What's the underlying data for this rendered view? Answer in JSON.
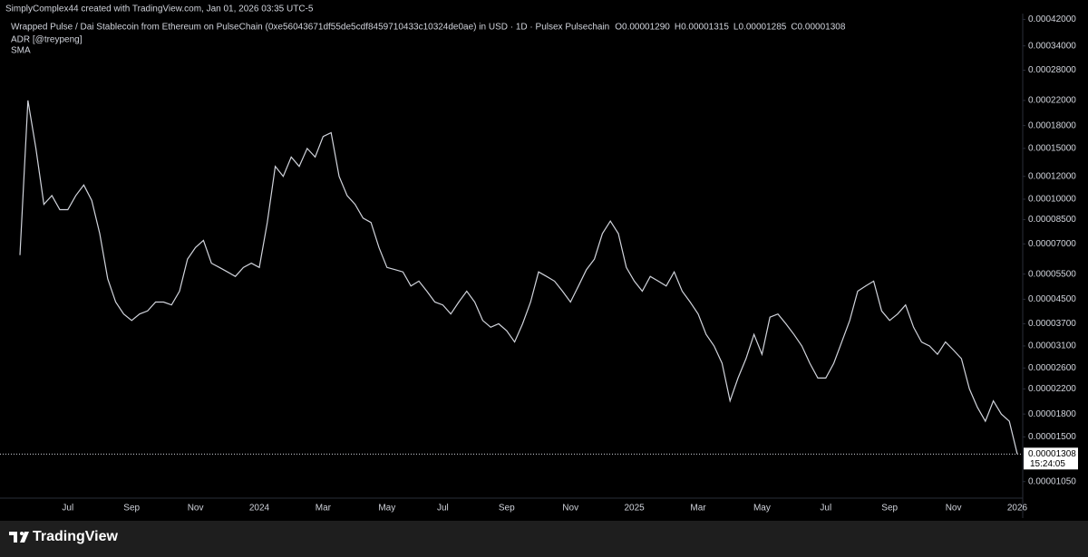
{
  "header": {
    "credit": "SimplyComplex44 created with TradingView.com, Jan 01, 2026 03:35 UTC-5"
  },
  "footer": {
    "brand": "TradingView"
  },
  "chart_data": {
    "type": "line",
    "title": "Wrapped Pulse / Dai Stablecoin from Ethereum on PulseChain (0xe56043671df55de5cdf8459710433c10324de0ae) in USD · 1D · Pulsex Pulsechain",
    "ohlc": [
      "O0.00001290",
      "H0.00001315",
      "L0.00001285",
      "C0.00001308"
    ],
    "indicators": [
      "ADR [@treypeng]",
      "SMA"
    ],
    "countdown": "15:24:05",
    "color": "#d1d4dc",
    "log_scale": true,
    "grid": false,
    "categories": [
      null,
      null,
      null,
      null,
      null,
      null,
      "Jul",
      null,
      null,
      null,
      null,
      null,
      null,
      null,
      "Sep",
      null,
      null,
      null,
      null,
      null,
      null,
      null,
      "Nov",
      null,
      null,
      null,
      null,
      null,
      null,
      null,
      "2024",
      null,
      null,
      null,
      null,
      null,
      null,
      null,
      "Mar",
      null,
      null,
      null,
      null,
      null,
      null,
      null,
      "May",
      null,
      null,
      null,
      null,
      null,
      null,
      "Jul",
      null,
      null,
      null,
      null,
      null,
      null,
      null,
      "Sep",
      null,
      null,
      null,
      null,
      null,
      null,
      null,
      "Nov",
      null,
      null,
      null,
      null,
      null,
      null,
      null,
      "2025",
      null,
      null,
      null,
      null,
      null,
      null,
      null,
      "Mar",
      null,
      null,
      null,
      null,
      null,
      null,
      null,
      "May",
      null,
      null,
      null,
      null,
      null,
      null,
      null,
      "Jul",
      null,
      null,
      null,
      null,
      null,
      null,
      null,
      "Sep",
      null,
      null,
      null,
      null,
      null,
      null,
      null,
      "Nov",
      null,
      null,
      null,
      null,
      null,
      null,
      null,
      "2026"
    ],
    "values": [
      6.4e-05,
      0.00022,
      0.00015,
      9.6e-05,
      0.000103,
      9.2e-05,
      9.2e-05,
      0.000103,
      0.000112,
      9.9e-05,
      7.6e-05,
      5.3e-05,
      4.4e-05,
      4e-05,
      3.8e-05,
      4e-05,
      4.1e-05,
      4.4e-05,
      4.4e-05,
      4.3e-05,
      4.8e-05,
      6.2e-05,
      6.8e-05,
      7.2e-05,
      6e-05,
      5.8e-05,
      5.6e-05,
      5.4e-05,
      5.8e-05,
      6e-05,
      5.8e-05,
      8.3e-05,
      0.00013,
      0.00012,
      0.00014,
      0.00013,
      0.00015,
      0.00014,
      0.000165,
      0.00017,
      0.00012,
      0.000103,
      9.6e-05,
      8.6e-05,
      8.3e-05,
      6.8e-05,
      5.8e-05,
      5.7e-05,
      5.6e-05,
      5e-05,
      5.2e-05,
      4.8e-05,
      4.4e-05,
      4.3e-05,
      4e-05,
      4.4e-05,
      4.8e-05,
      4.4e-05,
      3.8e-05,
      3.6e-05,
      3.7e-05,
      3.5e-05,
      3.2e-05,
      3.7e-05,
      4.4e-05,
      5.6e-05,
      5.4e-05,
      5.2e-05,
      4.8e-05,
      4.4e-05,
      5e-05,
      5.7e-05,
      6.2e-05,
      7.6e-05,
      8.4e-05,
      7.6e-05,
      5.8e-05,
      5.2e-05,
      4.8e-05,
      5.4e-05,
      5.2e-05,
      5e-05,
      5.6e-05,
      4.8e-05,
      4.4e-05,
      4e-05,
      3.4e-05,
      3.1e-05,
      2.7e-05,
      2e-05,
      2.4e-05,
      2.8e-05,
      3.4e-05,
      2.9e-05,
      3.9e-05,
      4e-05,
      3.7e-05,
      3.4e-05,
      3.1e-05,
      2.7e-05,
      2.4e-05,
      2.4e-05,
      2.7e-05,
      3.2e-05,
      3.8e-05,
      4.8e-05,
      5e-05,
      5.2e-05,
      4.1e-05,
      3.8e-05,
      4e-05,
      4.3e-05,
      3.6e-05,
      3.2e-05,
      3.1e-05,
      2.9e-05,
      3.2e-05,
      3e-05,
      2.8e-05,
      2.2e-05,
      1.9e-05,
      1.7e-05,
      2e-05,
      1.8e-05,
      1.7e-05,
      1.308e-05
    ],
    "ylim": [
      9.2e-06,
      0.00044
    ],
    "yticks": [
      {
        "value": 0.00042,
        "label": "0.00042000"
      },
      {
        "value": 0.00034,
        "label": "0.00034000"
      },
      {
        "value": 0.00028,
        "label": "0.00028000"
      },
      {
        "value": 0.00022,
        "label": "0.00022000"
      },
      {
        "value": 0.00018,
        "label": "0.00018000"
      },
      {
        "value": 0.00015,
        "label": "0.00015000"
      },
      {
        "value": 0.00012,
        "label": "0.00012000"
      },
      {
        "value": 0.0001,
        "label": "0.00010000"
      },
      {
        "value": 8.5e-05,
        "label": "0.00008500"
      },
      {
        "value": 7e-05,
        "label": "0.00007000"
      },
      {
        "value": 5.5e-05,
        "label": "0.00005500"
      },
      {
        "value": 4.5e-05,
        "label": "0.00004500"
      },
      {
        "value": 3.7e-05,
        "label": "0.00003700"
      },
      {
        "value": 3.1e-05,
        "label": "0.00003100"
      },
      {
        "value": 2.6e-05,
        "label": "0.00002600"
      },
      {
        "value": 2.2e-05,
        "label": "0.00002200"
      },
      {
        "value": 1.8e-05,
        "label": "0.00001800"
      },
      {
        "value": 1.5e-05,
        "label": "0.00001500"
      },
      {
        "value": 1.05e-05,
        "label": "0.00001050"
      }
    ]
  }
}
